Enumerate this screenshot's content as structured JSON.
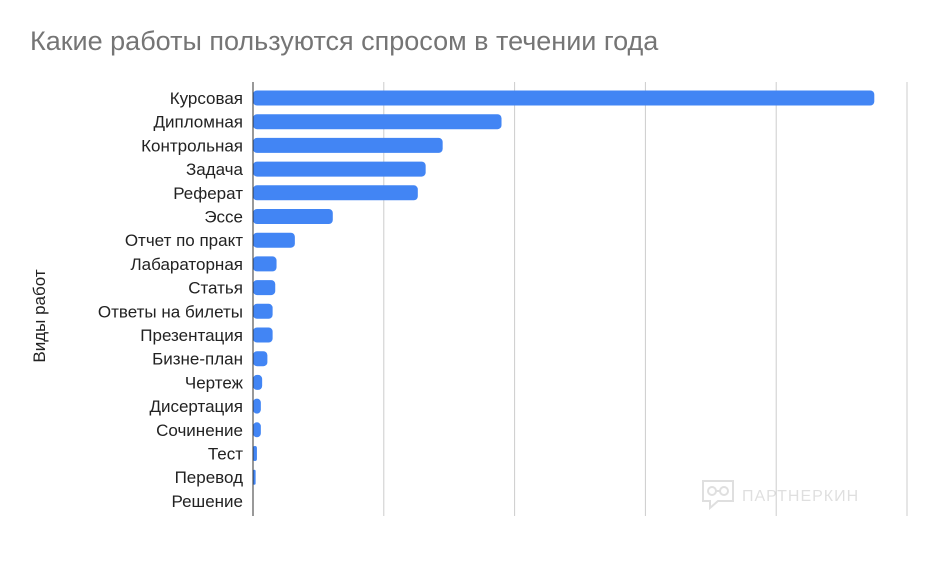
{
  "chart_data": {
    "type": "bar",
    "orientation": "horizontal",
    "title": "Какие работы пользуются спросом в течении года",
    "ylabel": "Виды работ",
    "xlabel": "",
    "categories": [
      "Курсовая",
      "Дипломная",
      "Контрольная",
      "Задача",
      "Реферат",
      "Эссе",
      "Отчет по практ",
      "Лабараторная",
      "Статья",
      "Ответы на билеты",
      "Презентация",
      "Бизне-план",
      "Чертеж",
      "Дисертация",
      "Сочинение",
      "Тест",
      "Перевод",
      "Решение"
    ],
    "values": [
      4.75,
      1.9,
      1.45,
      1.32,
      1.26,
      0.61,
      0.32,
      0.18,
      0.17,
      0.15,
      0.15,
      0.11,
      0.07,
      0.06,
      0.06,
      0.03,
      0.02,
      0
    ],
    "xlim": [
      0,
      5
    ],
    "gridlines": 5,
    "grid": true,
    "bar_color": "#4285f4",
    "legend": "none"
  },
  "watermark": {
    "text": "ПАРТНЕРКИН",
    "icon": "chat-glasses-icon"
  }
}
